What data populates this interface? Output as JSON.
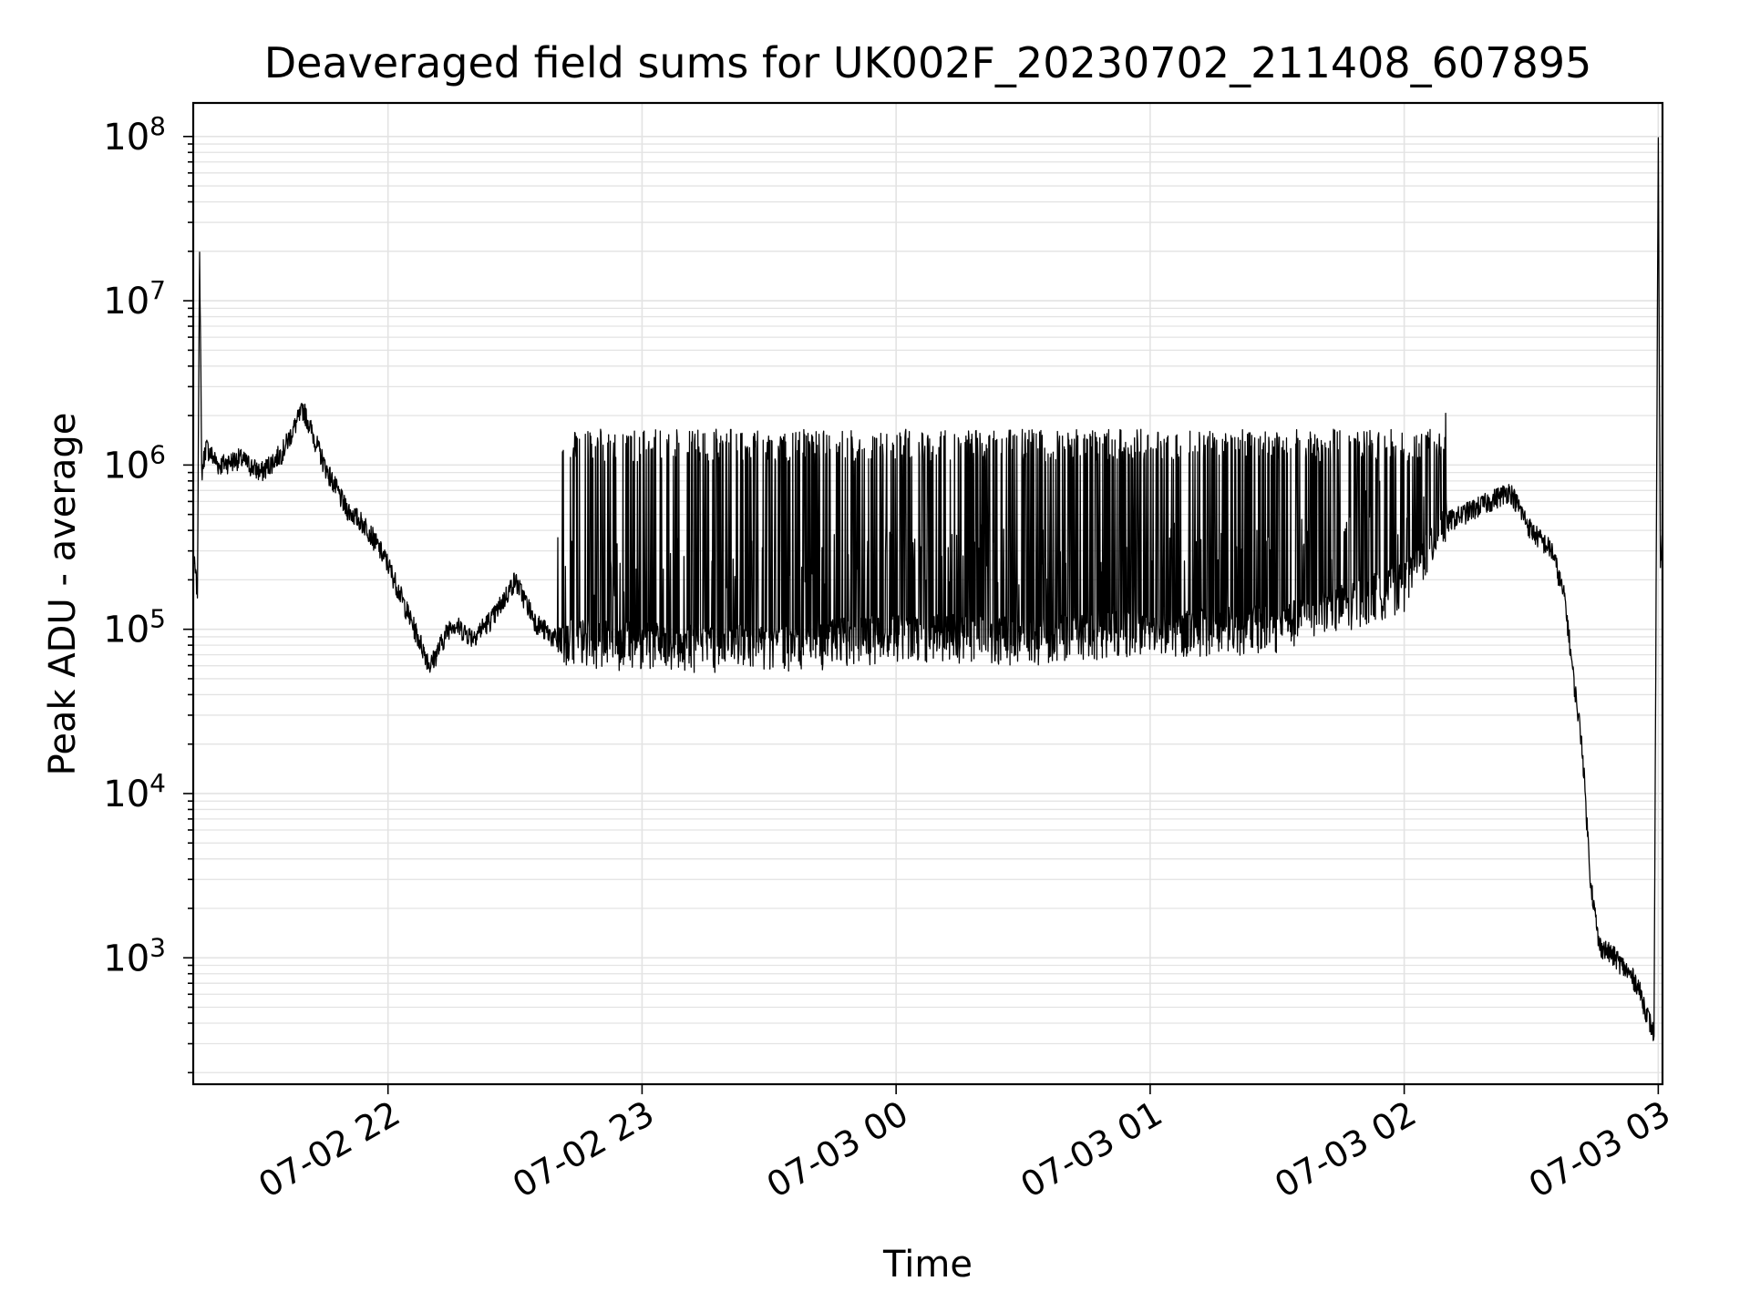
{
  "chart_data": {
    "type": "line",
    "title": "Deaveraged field sums for UK002F_20230702_211408_607895",
    "xlabel": "Time",
    "ylabel": "Peak ADU - average",
    "x_axis": {
      "range": [
        "2023-07-02 21:14",
        "2023-07-03 03:01"
      ],
      "ticks": [
        {
          "value": "2023-07-02 22:00",
          "label": "07-02 22"
        },
        {
          "value": "2023-07-02 23:00",
          "label": "07-02 23"
        },
        {
          "value": "2023-07-03 00:00",
          "label": "07-03 00"
        },
        {
          "value": "2023-07-03 01:00",
          "label": "07-03 01"
        },
        {
          "value": "2023-07-03 02:00",
          "label": "07-03 02"
        },
        {
          "value": "2023-07-03 03:00",
          "label": "07-03 03"
        }
      ]
    },
    "y_axis": {
      "scale": "log",
      "range": [
        170,
        160000000
      ],
      "ticks": [
        {
          "value": 1000,
          "base": "10",
          "exp": "3"
        },
        {
          "value": 10000,
          "base": "10",
          "exp": "4"
        },
        {
          "value": 100000,
          "base": "10",
          "exp": "5"
        },
        {
          "value": 1000000,
          "base": "10",
          "exp": "6"
        },
        {
          "value": 10000000,
          "base": "10",
          "exp": "7"
        },
        {
          "value": 100000000,
          "base": "10",
          "exp": "8"
        }
      ]
    },
    "grid": true,
    "series": [
      {
        "color": "#000000",
        "points": [
          [
            "2023-07-02 21:14",
            280000
          ],
          [
            "2023-07-02 21:15",
            170000
          ],
          [
            "2023-07-02 21:15:30",
            23000000
          ],
          [
            "2023-07-02 21:16",
            900000
          ],
          [
            "2023-07-02 21:17",
            1300000
          ],
          [
            "2023-07-02 21:20",
            1000000
          ],
          [
            "2023-07-02 21:25",
            1100000
          ],
          [
            "2023-07-02 21:30",
            900000
          ],
          [
            "2023-07-02 21:35",
            1200000
          ],
          [
            "2023-07-02 21:40",
            2200000
          ],
          [
            "2023-07-02 21:45",
            1000000
          ],
          [
            "2023-07-02 21:50",
            550000
          ],
          [
            "2023-07-02 21:55",
            420000
          ],
          [
            "2023-07-02 22:00",
            250000
          ],
          [
            "2023-07-02 22:05",
            120000
          ],
          [
            "2023-07-02 22:10",
            60000
          ],
          [
            "2023-07-02 22:15",
            110000
          ],
          [
            "2023-07-02 22:20",
            90000
          ],
          [
            "2023-07-02 22:25",
            120000
          ],
          [
            "2023-07-02 22:30",
            200000
          ],
          [
            "2023-07-02 22:35",
            110000
          ],
          [
            "2023-07-02 22:40",
            85000
          ],
          [
            "2023-07-02 22:50",
            80000
          ],
          [
            "2023-07-02 23:00",
            80000
          ],
          [
            "2023-07-02 23:30",
            75000
          ],
          [
            "2023-07-03 00:00",
            90000
          ],
          [
            "2023-07-03 00:30",
            85000
          ],
          [
            "2023-07-03 01:00",
            95000
          ],
          [
            "2023-07-03 01:30",
            100000
          ],
          [
            "2023-07-03 02:00",
            180000
          ],
          [
            "2023-07-03 02:10",
            450000
          ],
          [
            "2023-07-03 02:20",
            600000
          ],
          [
            "2023-07-03 02:25",
            700000
          ],
          [
            "2023-07-03 02:30",
            400000
          ],
          [
            "2023-07-03 02:35",
            300000
          ],
          [
            "2023-07-03 02:38",
            150000
          ],
          [
            "2023-07-03 02:40",
            50000
          ],
          [
            "2023-07-03 02:42",
            20000
          ],
          [
            "2023-07-03 02:44",
            3000
          ],
          [
            "2023-07-03 02:46",
            1200
          ],
          [
            "2023-07-03 02:50",
            1000
          ],
          [
            "2023-07-03 02:55",
            700
          ],
          [
            "2023-07-03 02:59",
            340
          ],
          [
            "2023-07-03 03:00",
            88000000
          ],
          [
            "2023-07-03 03:00:30",
            250000
          ],
          [
            "2023-07-03 03:01",
            400000
          ]
        ],
        "oscillation": {
          "range": [
            "2023-07-02 22:40",
            "2023-07-03 02:10"
          ],
          "low": 80000,
          "high": 1500000
        }
      }
    ]
  }
}
